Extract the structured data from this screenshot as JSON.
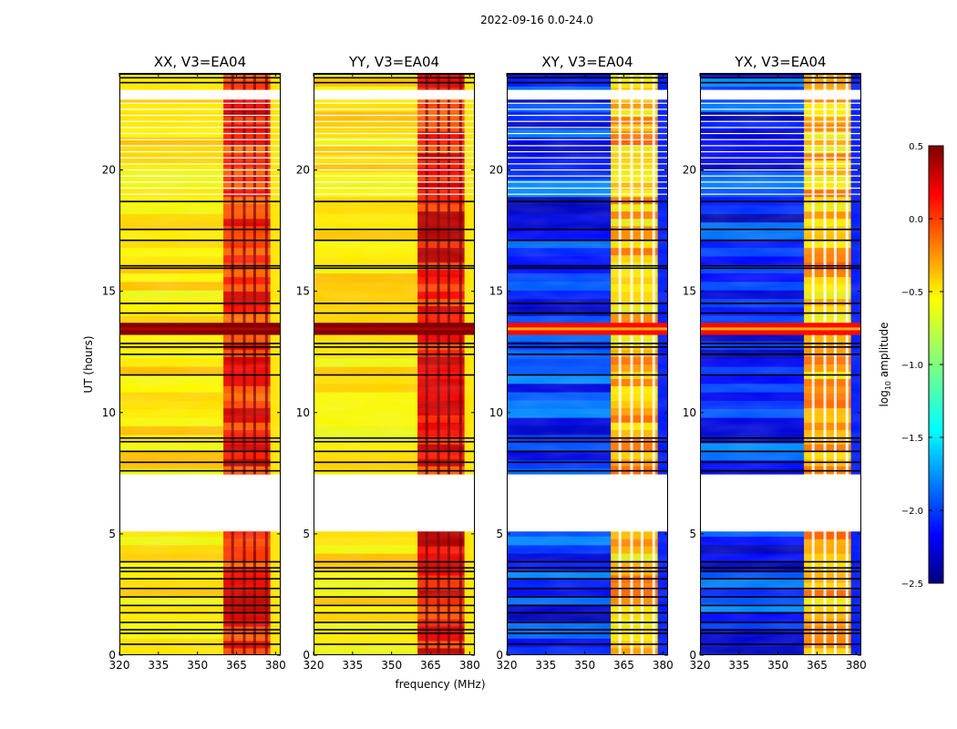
{
  "figure": {
    "suptitle": "2022-09-16 0.0-24.0",
    "ylabel": "UT (hours)",
    "xlabel": "frequency (MHz)",
    "colorbar_label": "log",
    "colorbar_label_sub": "10",
    "colorbar_label_rest": " amplitude"
  },
  "colors": {
    "stripe": "#000000",
    "gap": "#ffffff",
    "frame": "#000000"
  },
  "chart_data": {
    "type": "heatmap",
    "x_range_mhz": [
      320,
      382
    ],
    "y_range_hours": [
      0,
      24
    ],
    "xticks": [
      320,
      335,
      350,
      365,
      380
    ],
    "xtick_labels": [
      "320",
      "335",
      "350",
      "365",
      "380"
    ],
    "yticks": [
      0,
      5,
      10,
      15,
      20
    ],
    "ytick_labels": [
      "0",
      "5",
      "10",
      "15",
      "20"
    ],
    "colorbar": {
      "range": [
        -2.5,
        0.5
      ],
      "ticks": [
        0.5,
        0.0,
        -0.5,
        -1.0,
        -1.5,
        -2.0,
        -2.5
      ],
      "tick_labels": [
        "0.5",
        "0.0",
        "−0.5",
        "−1.0",
        "−1.5",
        "−2.0",
        "−2.5"
      ],
      "colormap": "jet"
    },
    "rfi_band_mhz": [
      360,
      378
    ],
    "rfi_lines_mhz": [
      363.5,
      368,
      372,
      376.5
    ],
    "flagged_hours": [
      [
        5.1,
        7.45
      ],
      [
        22.9,
        23.3
      ]
    ],
    "strong_band_hours": [
      13.2,
      13.7
    ],
    "stripe_hours": [
      0.45,
      0.9,
      1.05,
      1.35,
      1.75,
      2.05,
      2.4,
      2.75,
      3.15,
      3.45,
      3.6,
      3.85,
      7.6,
      7.95,
      8.4,
      8.8,
      8.95,
      11.55,
      12.4,
      12.7,
      12.85,
      14.1,
      14.5,
      15.95,
      16.05,
      17.1,
      17.55,
      18.7,
      23.05,
      23.6,
      23.8,
      23.95
    ],
    "panels": [
      {
        "title": "XX, V3=EA04",
        "kind": "parallel",
        "bg_level": -0.55,
        "rfi_level": 0.05
      },
      {
        "title": "YY, V3=EA04",
        "kind": "parallel",
        "bg_level": -0.55,
        "rfi_level": 0.1
      },
      {
        "title": "XY, V3=EA04",
        "kind": "cross",
        "bg_level": -2.05,
        "rfi_level": -0.4
      },
      {
        "title": "YX, V3=EA04",
        "kind": "cross",
        "bg_level": -2.05,
        "rfi_level": -0.4
      }
    ]
  }
}
